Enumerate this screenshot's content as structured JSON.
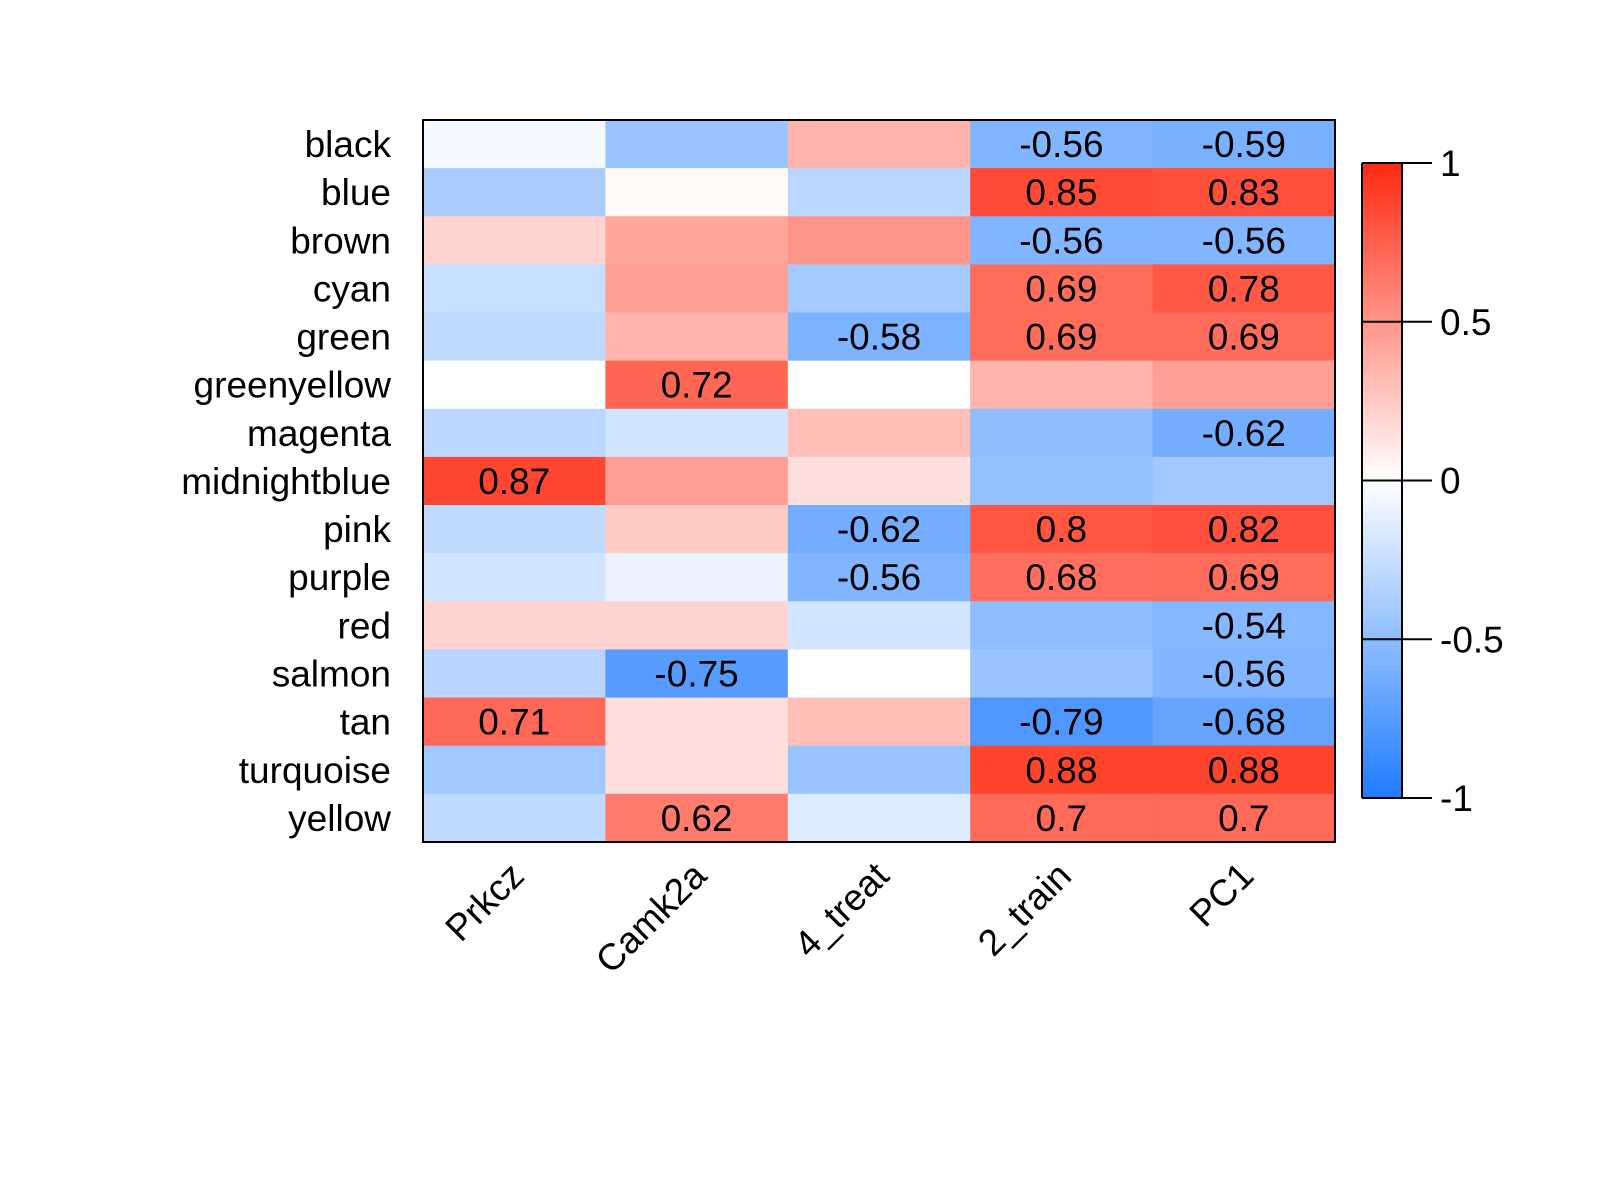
{
  "chart_data": {
    "type": "heatmap",
    "title": "",
    "xlabel": "",
    "ylabel": "",
    "rows": [
      "black",
      "blue",
      "brown",
      "cyan",
      "green",
      "greenyellow",
      "magenta",
      "midnightblue",
      "pink",
      "purple",
      "red",
      "salmon",
      "tan",
      "turquoise",
      "yellow"
    ],
    "columns": [
      "Prkcz",
      "Camk2a",
      "4_treat",
      "2_train",
      "PC1"
    ],
    "values": [
      [
        -0.05,
        -0.45,
        0.35,
        -0.56,
        -0.59
      ],
      [
        -0.38,
        0.03,
        -0.3,
        0.85,
        0.83
      ],
      [
        0.2,
        0.42,
        0.5,
        -0.56,
        -0.56
      ],
      [
        -0.25,
        0.45,
        -0.4,
        0.69,
        0.78
      ],
      [
        -0.28,
        0.35,
        -0.58,
        0.69,
        0.69
      ],
      [
        0.0,
        0.72,
        0.0,
        0.35,
        0.45
      ],
      [
        -0.3,
        -0.2,
        0.3,
        -0.5,
        -0.62
      ],
      [
        0.87,
        0.45,
        0.15,
        -0.48,
        -0.42
      ],
      [
        -0.28,
        0.25,
        -0.62,
        0.8,
        0.82
      ],
      [
        -0.2,
        -0.1,
        -0.56,
        0.68,
        0.69
      ],
      [
        0.2,
        0.2,
        -0.2,
        -0.5,
        -0.54
      ],
      [
        -0.32,
        -0.75,
        0.0,
        -0.45,
        -0.56
      ],
      [
        0.71,
        0.15,
        0.3,
        -0.79,
        -0.68
      ],
      [
        -0.42,
        0.15,
        -0.45,
        0.88,
        0.88
      ],
      [
        -0.28,
        0.62,
        -0.15,
        0.7,
        0.7
      ]
    ],
    "labels": [
      [
        "",
        "",
        "",
        "-0.56",
        "-0.59"
      ],
      [
        "",
        "",
        "",
        "0.85",
        "0.83"
      ],
      [
        "",
        "",
        "",
        "-0.56",
        "-0.56"
      ],
      [
        "",
        "",
        "",
        "0.69",
        "0.78"
      ],
      [
        "",
        "",
        "-0.58",
        "0.69",
        "0.69"
      ],
      [
        "",
        "0.72",
        "",
        "",
        ""
      ],
      [
        "",
        "",
        "",
        "",
        "-0.62"
      ],
      [
        "0.87",
        "",
        "",
        "",
        ""
      ],
      [
        "",
        "",
        "-0.62",
        "0.8",
        "0.82"
      ],
      [
        "",
        "",
        "-0.56",
        "0.68",
        "0.69"
      ],
      [
        "",
        "",
        "",
        "",
        "-0.54"
      ],
      [
        "",
        "-0.75",
        "",
        "",
        "-0.56"
      ],
      [
        "0.71",
        "",
        "",
        "-0.79",
        "-0.68"
      ],
      [
        "",
        "",
        "",
        "0.88",
        "0.88"
      ],
      [
        "",
        "0.62",
        "",
        "0.7",
        "0.7"
      ]
    ],
    "color_scale": {
      "min": -1,
      "max": 1,
      "low_color": "#1E7BFF",
      "mid_color": "#FFFFFF",
      "high_color": "#FF2A12",
      "ticks": [
        1,
        0.5,
        0,
        -0.5,
        -1
      ],
      "tick_labels": [
        "1",
        "0.5",
        "0",
        "-0.5",
        "-1"
      ]
    },
    "legend": "right",
    "grid": false
  }
}
